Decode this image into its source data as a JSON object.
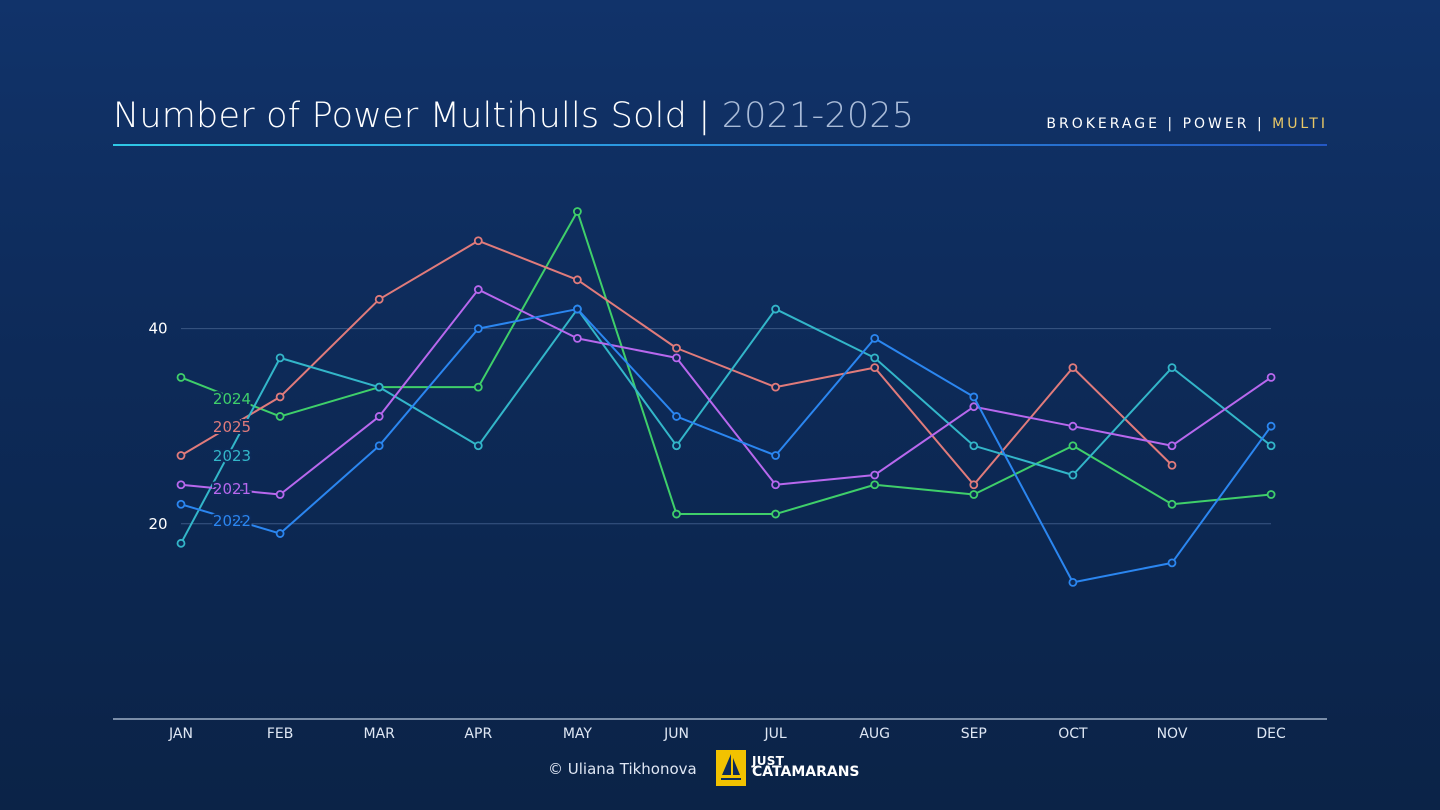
{
  "header": {
    "title": "Number of Power Multihulls Sold |",
    "title_years": "2021-2025",
    "nav": [
      "BROKERAGE",
      "POWER",
      "MULTI"
    ],
    "nav_sep": "|",
    "nav_active_color": "#e8c766"
  },
  "footer": {
    "credit": "© Uliana Tikhonova",
    "logo_line1": "JUST",
    "logo_line2": "CATAMARANS",
    "logo_color": "#f2c200"
  },
  "chart_data": {
    "type": "line",
    "categories": [
      "JAN",
      "FEB",
      "MAR",
      "APR",
      "MAY",
      "JUN",
      "JUL",
      "AUG",
      "SEP",
      "OCT",
      "NOV",
      "DEC"
    ],
    "yticks": [
      20,
      40
    ],
    "ylim": [
      0,
      60
    ],
    "grid": true,
    "series": [
      {
        "name": "2024",
        "color": "#3fcf6a",
        "values": [
          35,
          31,
          34,
          34,
          52,
          21,
          21,
          24,
          23,
          28,
          22,
          23
        ]
      },
      {
        "name": "2025",
        "color": "#e07b7b",
        "values": [
          27,
          33,
          43,
          49,
          45,
          38,
          34,
          36,
          24,
          36,
          26,
          null
        ]
      },
      {
        "name": "2023",
        "color": "#33b6c9",
        "values": [
          18,
          37,
          34,
          28,
          42,
          28,
          42,
          37,
          28,
          25,
          36,
          28
        ]
      },
      {
        "name": "2021",
        "color": "#b868ee",
        "values": [
          24,
          23,
          31,
          44,
          39,
          37,
          24,
          25,
          32,
          30,
          28,
          35
        ]
      },
      {
        "name": "2022",
        "color": "#2b86f0",
        "values": [
          22,
          19,
          28,
          40,
          42,
          31,
          27,
          39,
          33,
          14,
          16,
          30
        ]
      }
    ]
  }
}
